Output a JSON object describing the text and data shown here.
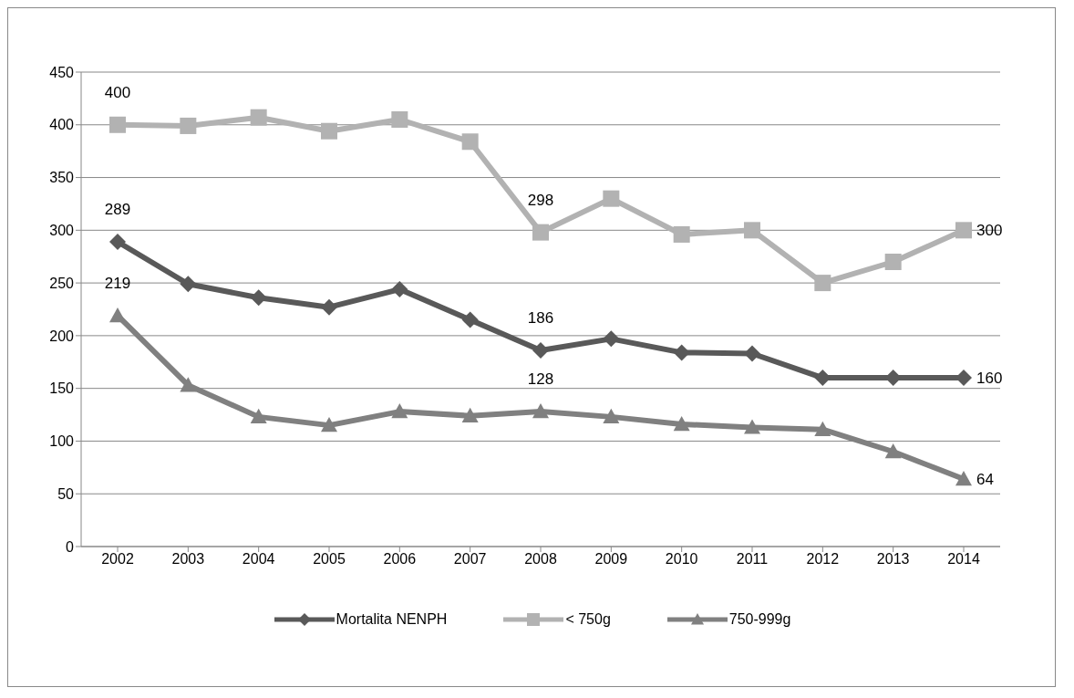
{
  "chart_data": {
    "type": "line",
    "categories": [
      "2002",
      "2003",
      "2004",
      "2005",
      "2006",
      "2007",
      "2008",
      "2009",
      "2010",
      "2011",
      "2012",
      "2013",
      "2014"
    ],
    "series": [
      {
        "name": "Mortalita NENPH",
        "color": "#595959",
        "marker": "diamond",
        "values": [
          289,
          249,
          236,
          227,
          244,
          215,
          186,
          197,
          184,
          183,
          160,
          160,
          160
        ],
        "value_labels": [
          "289",
          null,
          null,
          null,
          null,
          null,
          "186",
          null,
          null,
          null,
          null,
          null,
          "160"
        ]
      },
      {
        "name": "< 750g",
        "color": "#b2b2b2",
        "marker": "square",
        "values": [
          400,
          399,
          407,
          394,
          405,
          384,
          298,
          330,
          296,
          300,
          250,
          270,
          300
        ],
        "value_labels": [
          "400",
          null,
          null,
          null,
          null,
          null,
          "298",
          null,
          null,
          null,
          null,
          null,
          "300"
        ]
      },
      {
        "name": "750-999g",
        "color": "#808080",
        "marker": "triangle",
        "values": [
          219,
          153,
          123,
          115,
          128,
          124,
          128,
          123,
          116,
          113,
          111,
          90,
          64
        ],
        "value_labels": [
          "219",
          null,
          null,
          null,
          null,
          null,
          "128",
          null,
          null,
          null,
          null,
          null,
          "64"
        ]
      }
    ],
    "ylim": [
      0,
      450
    ],
    "yticks": [
      0,
      50,
      100,
      150,
      200,
      250,
      300,
      350,
      400,
      450
    ],
    "grid": "y",
    "legend": "bottom"
  }
}
